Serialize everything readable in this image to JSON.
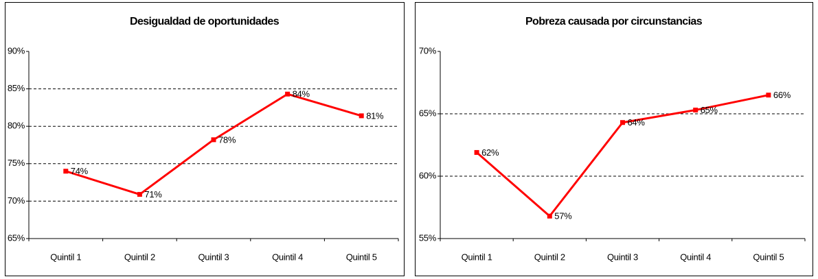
{
  "chart_data": [
    {
      "type": "line",
      "title": "Desigualdad de oportunidades",
      "categories": [
        "Quintil 1",
        "Quintil 2",
        "Quintil 3",
        "Quintil 4",
        "Quintil 5"
      ],
      "series": [
        {
          "name": "Desigualdad de oportunidades",
          "color": "#ff0000",
          "values": [
            74.0,
            70.9,
            78.2,
            84.3,
            81.4
          ],
          "value_labels": [
            "74%",
            "71%",
            "78%",
            "84%",
            "81%"
          ]
        }
      ],
      "ylim": [
        65,
        90
      ],
      "yticks": [
        {
          "value": 65,
          "label": "65%"
        },
        {
          "value": 70,
          "label": "70%"
        },
        {
          "value": 75,
          "label": "75%"
        },
        {
          "value": 80,
          "label": "80%"
        },
        {
          "value": 85,
          "label": "85%"
        },
        {
          "value": 90,
          "label": "90%"
        }
      ],
      "grid": true
    },
    {
      "type": "line",
      "title": "Pobreza causada por circunstancias",
      "categories": [
        "Quintil 1",
        "Quintil 2",
        "Quintil 3",
        "Quintil 4",
        "Quintil 5"
      ],
      "series": [
        {
          "name": "Pobreza causada por circunstancias",
          "color": "#ff0000",
          "values": [
            61.9,
            56.8,
            64.3,
            65.3,
            66.5
          ],
          "value_labels": [
            "62%",
            "57%",
            "64%",
            "65%",
            "66%"
          ]
        }
      ],
      "ylim": [
        55,
        70
      ],
      "yticks": [
        {
          "value": 55,
          "label": "55%"
        },
        {
          "value": 60,
          "label": "60%"
        },
        {
          "value": 65,
          "label": "65%"
        },
        {
          "value": 70,
          "label": "70%"
        }
      ],
      "grid": true
    }
  ]
}
